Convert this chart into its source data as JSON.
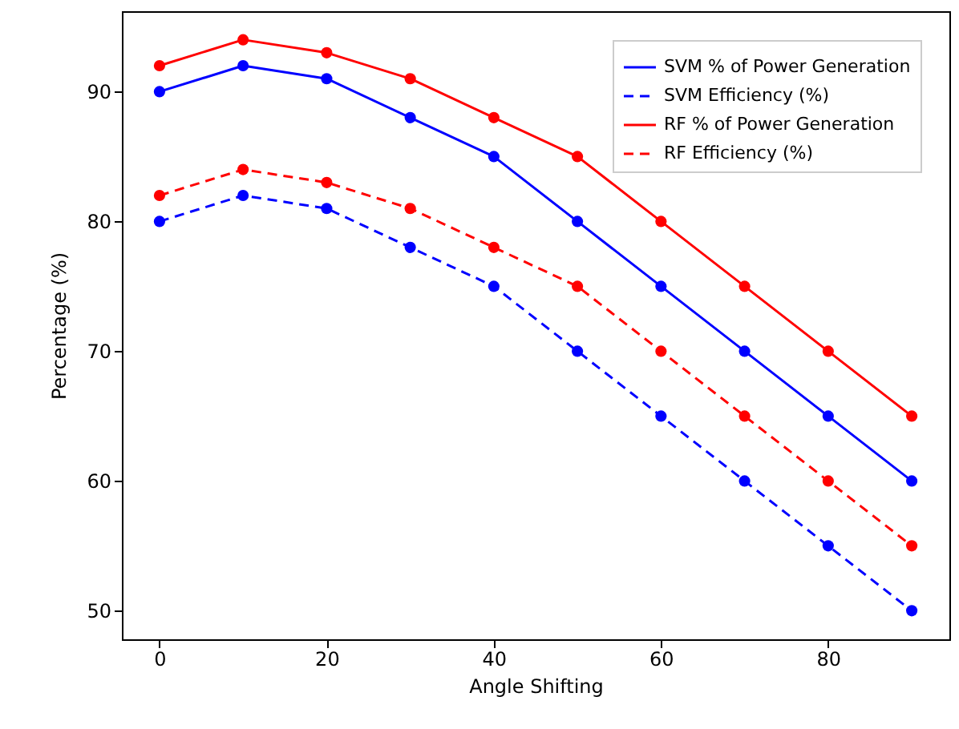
{
  "chart_data": {
    "type": "line",
    "xlabel": "Angle Shifting",
    "ylabel": "Percentage (%)",
    "x": [
      0,
      10,
      20,
      30,
      40,
      50,
      60,
      70,
      80,
      90
    ],
    "series": [
      {
        "name": "SVM % of Power Generation",
        "color": "#0000ff",
        "line_style": "solid",
        "values": [
          90,
          92,
          91,
          88,
          85,
          80,
          75,
          70,
          65,
          60
        ]
      },
      {
        "name": "SVM Efficiency (%)",
        "color": "#0000ff",
        "line_style": "dashed",
        "values": [
          80,
          82,
          81,
          78,
          75,
          70,
          65,
          60,
          55,
          50
        ]
      },
      {
        "name": "RF % of Power Generation",
        "color": "#ff0000",
        "line_style": "solid",
        "values": [
          92,
          94,
          93,
          91,
          88,
          85,
          80,
          75,
          70,
          65
        ]
      },
      {
        "name": "RF Efficiency (%)",
        "color": "#ff0000",
        "line_style": "dashed",
        "values": [
          82,
          84,
          83,
          81,
          78,
          75,
          70,
          65,
          60,
          55
        ]
      }
    ],
    "xlim": [
      -4.5,
      94.5
    ],
    "xticks": [
      0,
      20,
      40,
      60,
      80
    ],
    "ylim": [
      47.8,
      96.2
    ],
    "yticks": [
      50,
      60,
      70,
      80,
      90
    ],
    "marker": "circle",
    "grid": false,
    "legend": "top right"
  }
}
